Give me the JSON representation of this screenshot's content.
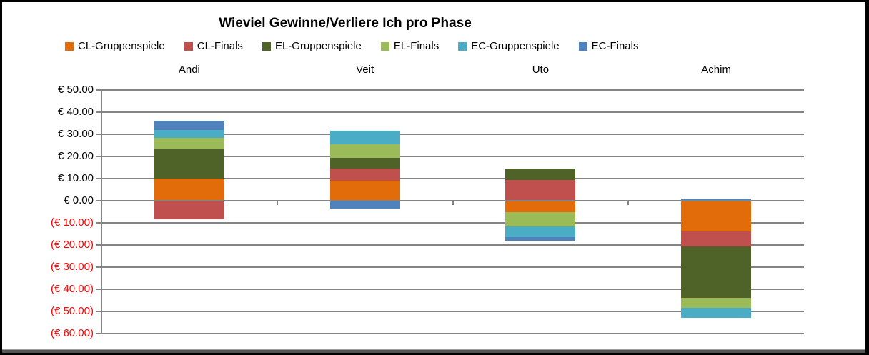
{
  "chart": {
    "title": "Wieviel Gewinne/Verliere Ich pro Phase"
  },
  "chart_data": {
    "type": "bar",
    "variant": "stacked-column",
    "title": "Wieviel Gewinne/Verliere Ich pro Phase",
    "categories": [
      "Andi",
      "Veit",
      "Uto",
      "Achim"
    ],
    "series": [
      {
        "name": "CL-Gruppenspiele",
        "color": "#E36C0A",
        "values": [
          10,
          9,
          -5,
          -14
        ]
      },
      {
        "name": "CL-Finals",
        "color": "#C0504D",
        "values": [
          -8.5,
          5.5,
          9.5,
          -6.5
        ]
      },
      {
        "name": "EL-Gruppenspiele",
        "color": "#4F6228",
        "values": [
          13.5,
          5,
          5,
          -23.5
        ]
      },
      {
        "name": "EL-Finals",
        "color": "#9BBB59",
        "values": [
          5,
          6,
          -6.5,
          -4.5
        ]
      },
      {
        "name": "EC-Gruppenspiele",
        "color": "#4BACC6",
        "values": [
          3.5,
          6,
          -5,
          -4.5
        ]
      },
      {
        "name": "EC-Finals",
        "color": "#4F81BD",
        "values": [
          4,
          -3.5,
          -1.5,
          1
        ]
      }
    ],
    "xlabel": "",
    "ylabel": "",
    "ylim": [
      -60,
      50
    ],
    "ytick_step": 10,
    "ytick_labels": [
      "€ 50.00",
      "€ 40.00",
      "€ 30.00",
      "€ 20.00",
      "€ 10.00",
      "€ 0.00",
      "(€ 10.00)",
      "(€ 20.00)",
      "(€ 30.00)",
      "(€ 40.00)",
      "(€ 50.00)",
      "(€ 60.00)"
    ],
    "negative_label_color": "#FF0000",
    "positive_label_color": "#000000",
    "gridline_color": "#848484",
    "grid": true,
    "legend_position": "top",
    "category_labels_position": "top"
  }
}
